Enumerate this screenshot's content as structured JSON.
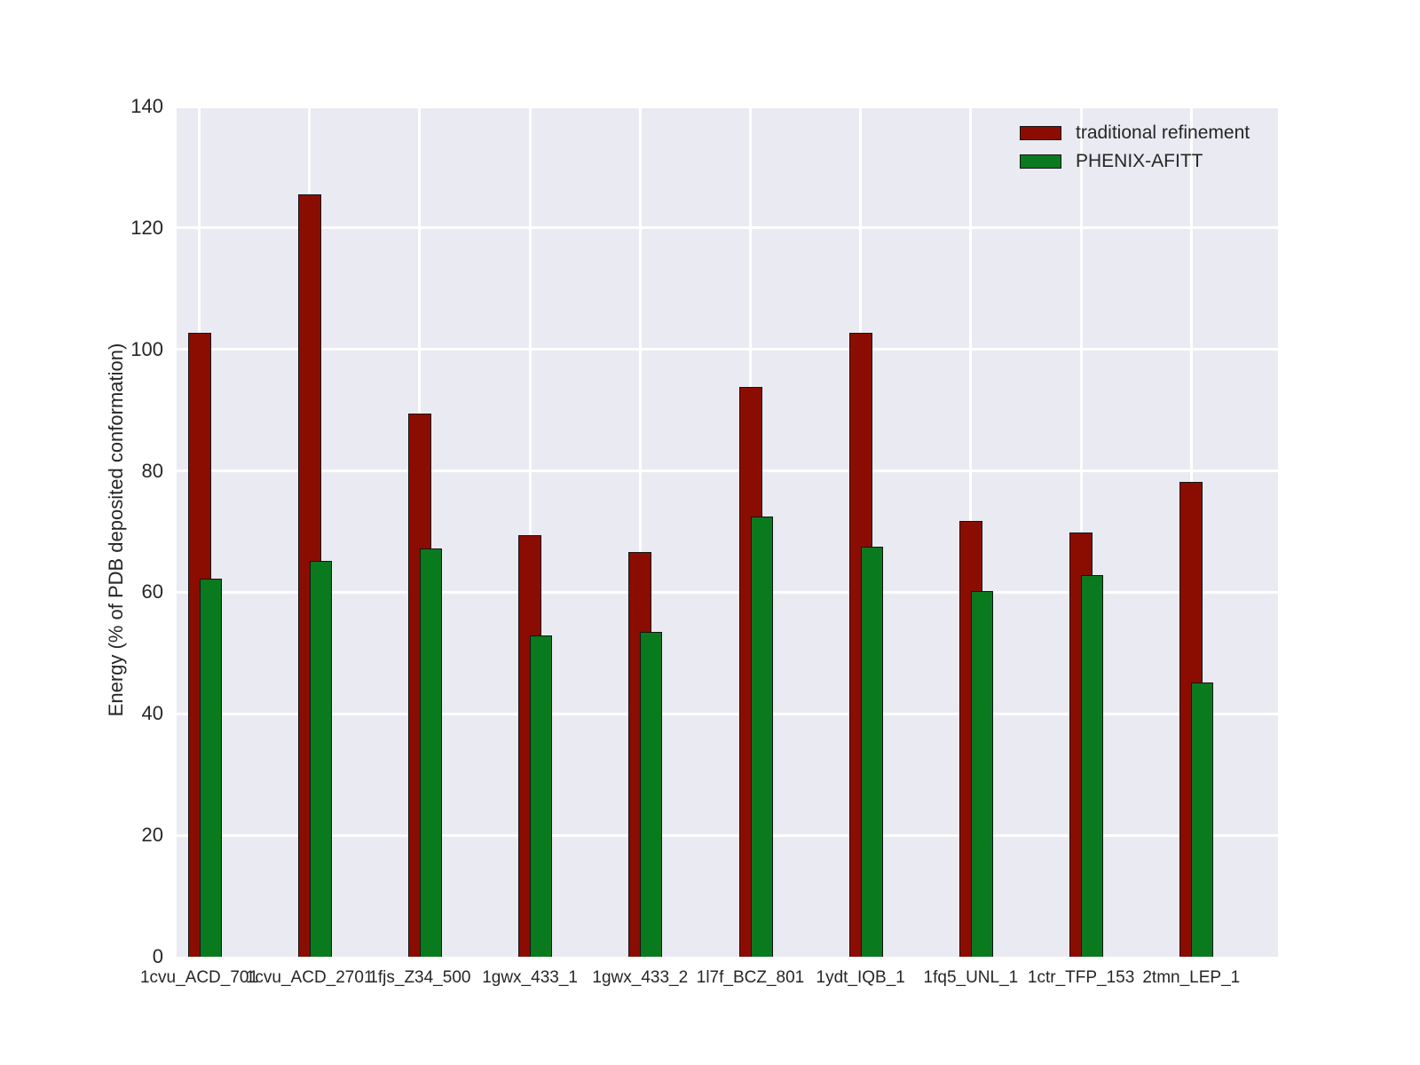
{
  "chart_data": {
    "type": "bar",
    "title": "",
    "xlabel": "",
    "ylabel": "Energy (% of PDB deposited conformation)",
    "ylim": [
      0,
      140
    ],
    "yticks": [
      0,
      20,
      40,
      60,
      80,
      100,
      120,
      140
    ],
    "grid": true,
    "legend_position": "upper right",
    "categories": [
      "1cvu_ACD_701",
      "1cvu_ACD_2701",
      "1fjs_Z34_500",
      "1gwx_433_1",
      "1gwx_433_2",
      "1l7f_BCZ_801",
      "1ydt_IQB_1",
      "1fq5_UNL_1",
      "1ctr_TFP_153",
      "2tmn_LEP_1"
    ],
    "series": [
      {
        "name": "traditional refinement",
        "color": "#8b0d02",
        "values": [
          102.7,
          125.6,
          89.4,
          69.4,
          66.7,
          93.8,
          102.7,
          71.7,
          69.8,
          78.2
        ]
      },
      {
        "name": "PHENIX-AFITT",
        "color": "#0a7a1e",
        "values": [
          62.3,
          65.2,
          67.2,
          52.9,
          53.5,
          72.5,
          67.5,
          60.2,
          62.9,
          45.1
        ]
      }
    ],
    "colors": {
      "plot_background": "#eaeaf2",
      "figure_background": "#ffffff",
      "gridline": "#ffffff",
      "bar_edge": "#141414",
      "text": "#262626"
    }
  }
}
